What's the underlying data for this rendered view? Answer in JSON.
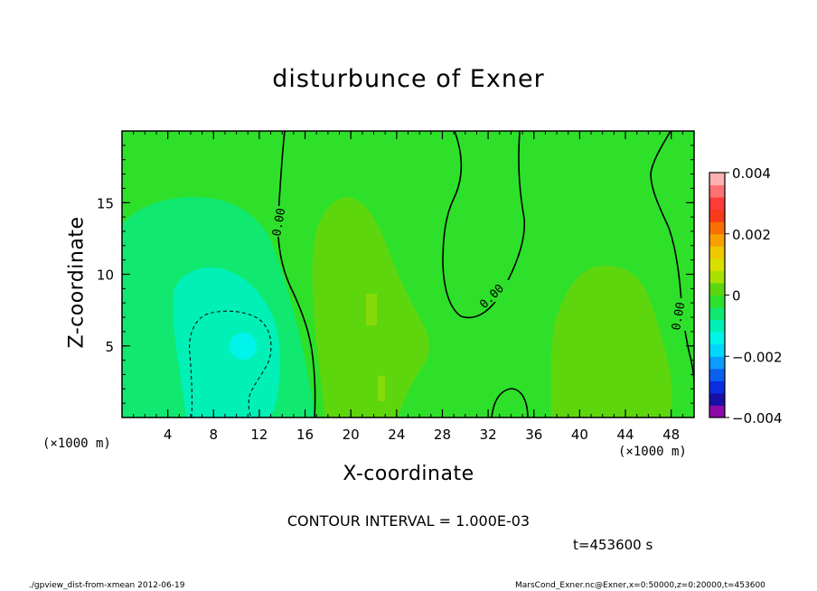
{
  "figure": {
    "title": "disturbunce of Exner",
    "x_unit_left": "(×1000 m)",
    "x_unit_right": "(×1000 m)",
    "contour_interval": "CONTOUR INTERVAL = 1.000E-03",
    "time_label": "t=453600 s",
    "program_label": "./gpview_dist-from-xmean  2012-06-19",
    "source_label": "MarsCond_Exner.nc@Exner,x=0:50000,z=0:20000,t=453600"
  },
  "colors": {
    "background_level_0": "#2ee02a",
    "level_pos1": "#5ed60e",
    "level_neg1": "#10e870",
    "level_neg2": "#00f0b8",
    "level_neg3": "#00f4ea",
    "colorbar": [
      "#8e0aa8",
      "#1a10a6",
      "#0a2ee0",
      "#0a60f0",
      "#0a9cff",
      "#00d8ff",
      "#00f4ea",
      "#00f0b8",
      "#10e870",
      "#2ee02a",
      "#5ed60e",
      "#a8e000",
      "#d8e000",
      "#f0c800",
      "#f8a000",
      "#f87000",
      "#f83a1a",
      "#ff3a3a",
      "#ff7070",
      "#ffb0b0"
    ]
  },
  "chart_data": {
    "type": "contour",
    "title": "disturbunce of Exner",
    "xlabel": "X-coordinate",
    "ylabel": "Z-coordinate",
    "xlim": [
      0,
      50
    ],
    "ylim": [
      0,
      20
    ],
    "x_ticks": [
      4,
      8,
      12,
      16,
      20,
      24,
      28,
      32,
      36,
      40,
      44,
      48
    ],
    "y_ticks": [
      5,
      10,
      15
    ],
    "colorbar_ticks": [
      "0.004",
      "0.002",
      "0",
      "−0.002",
      "−0.004"
    ],
    "colorbar_range": [
      -0.004,
      0.004
    ],
    "contour_interval": 0.001,
    "contour_labels": [
      {
        "text": "0.00",
        "x": 14.5,
        "y": 13.5
      },
      {
        "text": "0.00",
        "x": 32.8,
        "y": 8.2
      },
      {
        "text": "0.00",
        "x": 48.7,
        "y": 7.2
      }
    ]
  }
}
